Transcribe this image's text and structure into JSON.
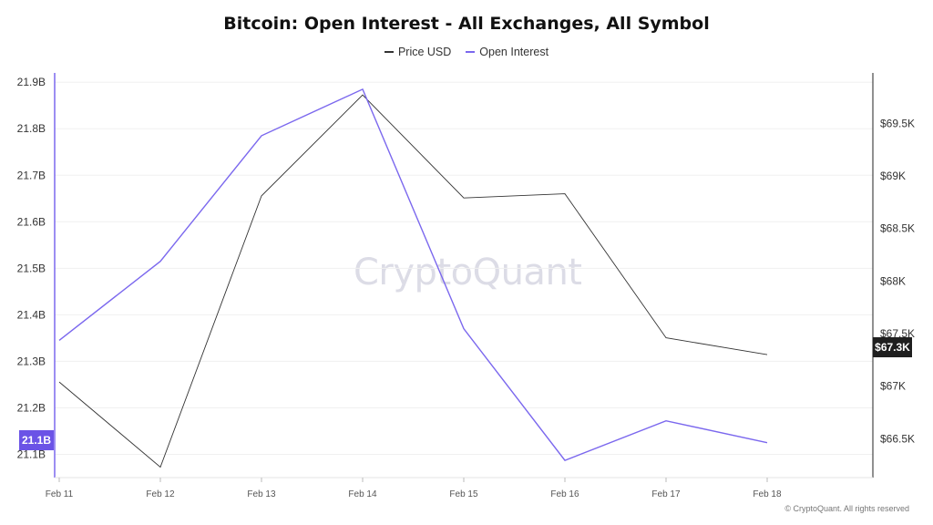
{
  "chart_data": {
    "type": "line",
    "title": "Bitcoin: Open Interest - All Exchanges, All Symbol",
    "categories": [
      "Feb 11",
      "Feb 12",
      "Feb 13",
      "Feb 14",
      "Feb 15",
      "Feb 16",
      "Feb 17",
      "Feb 18"
    ],
    "series": [
      {
        "name": "Price USD",
        "axis": "right",
        "color": "#333333",
        "values": [
          67040,
          66230,
          68810,
          69770,
          68790,
          68830,
          67460,
          67300
        ]
      },
      {
        "name": "Open Interest",
        "axis": "left",
        "color": "#7b68ee",
        "values": [
          21.345,
          21.515,
          21.785,
          21.885,
          21.37,
          21.087,
          21.172,
          21.125
        ]
      }
    ],
    "left_axis": {
      "ticks": [
        "21.1B",
        "21.2B",
        "21.3B",
        "21.4B",
        "21.5B",
        "21.6B",
        "21.7B",
        "21.8B",
        "21.9B"
      ],
      "tick_values": [
        21.1,
        21.2,
        21.3,
        21.4,
        21.5,
        21.6,
        21.7,
        21.8,
        21.9
      ],
      "ylim": [
        21.05,
        21.92
      ]
    },
    "right_axis": {
      "ticks": [
        "$66.5K",
        "$67K",
        "$67.5K",
        "$68K",
        "$68.5K",
        "$69K",
        "$69.5K"
      ],
      "tick_values": [
        66500,
        67000,
        67500,
        68000,
        68500,
        69000,
        69500
      ],
      "ylim": [
        66130,
        69980
      ]
    },
    "last_value_labels": {
      "left": "21.1B",
      "right": "$67.3K"
    },
    "grid": true,
    "legend_position": "top-center"
  },
  "watermark": "CryptoQuant",
  "copyright": "© CryptoQuant. All rights reserved"
}
